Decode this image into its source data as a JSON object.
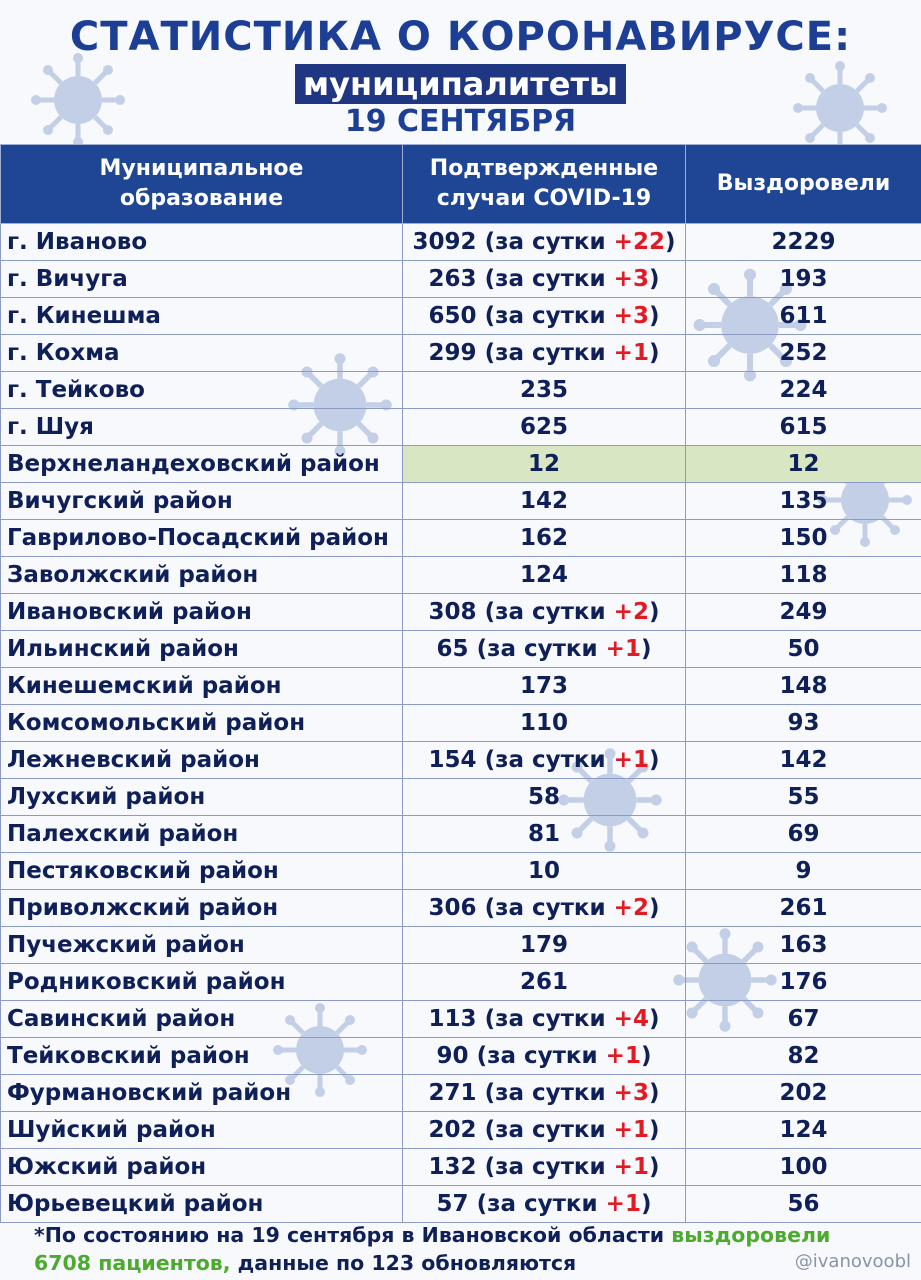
{
  "header": {
    "title": "СТАТИСТИКА О КОРОНАВИРУСЕ:",
    "subtitle": "муниципалитеты",
    "date": "19 СЕНТЯБРЯ"
  },
  "table": {
    "columns": [
      "Муниципальное образование",
      "Подтвержденные случаи COVID-19",
      "Выздоровели"
    ],
    "column_lines": [
      [
        "Муниципальное",
        "образование"
      ],
      [
        "Подтвержденные",
        "случаи COVID-19"
      ],
      [
        "Выздоровели"
      ]
    ],
    "delta_prefix": "(за сутки ",
    "delta_suffix": ")",
    "rows": [
      {
        "name": "г. Иваново",
        "confirmed": "3092",
        "delta": "+22",
        "recovered": "2229"
      },
      {
        "name": "г. Вичуга",
        "confirmed": "263",
        "delta": "+3",
        "recovered": "193"
      },
      {
        "name": "г. Кинешма",
        "confirmed": "650",
        "delta": "+3",
        "recovered": "611"
      },
      {
        "name": "г. Кохма",
        "confirmed": "299",
        "delta": "+1",
        "recovered": "252"
      },
      {
        "name": "г. Тейково",
        "confirmed": "235",
        "delta": "",
        "recovered": "224"
      },
      {
        "name": "г. Шуя",
        "confirmed": "625",
        "delta": "",
        "recovered": "615"
      },
      {
        "name": "Верхнеландеховский район",
        "confirmed": "12",
        "delta": "",
        "recovered": "12",
        "highlight": true
      },
      {
        "name": "Вичугский район",
        "confirmed": "142",
        "delta": "",
        "recovered": "135"
      },
      {
        "name": "Гаврилово-Посадский район",
        "confirmed": "162",
        "delta": "",
        "recovered": "150"
      },
      {
        "name": "Заволжский район",
        "confirmed": "124",
        "delta": "",
        "recovered": "118"
      },
      {
        "name": "Ивановский район",
        "confirmed": "308",
        "delta": "+2",
        "recovered": "249"
      },
      {
        "name": "Ильинский район",
        "confirmed": "65",
        "delta": "+1",
        "recovered": "50"
      },
      {
        "name": "Кинешемский район",
        "confirmed": "173",
        "delta": "",
        "recovered": "148"
      },
      {
        "name": "Комсомольский район",
        "confirmed": "110",
        "delta": "",
        "recovered": "93"
      },
      {
        "name": "Лежневский район",
        "confirmed": "154",
        "delta": "+1",
        "recovered": "142"
      },
      {
        "name": "Лухский район",
        "confirmed": "58",
        "delta": "",
        "recovered": "55"
      },
      {
        "name": "Палехский район",
        "confirmed": "81",
        "delta": "",
        "recovered": "69"
      },
      {
        "name": "Пестяковский район",
        "confirmed": "10",
        "delta": "",
        "recovered": "9"
      },
      {
        "name": "Приволжский район",
        "confirmed": "306",
        "delta": "+2",
        "recovered": "261"
      },
      {
        "name": "Пучежский район",
        "confirmed": "179",
        "delta": "",
        "recovered": "163"
      },
      {
        "name": "Родниковский район",
        "confirmed": "261",
        "delta": "",
        "recovered": "176"
      },
      {
        "name": "Савинский район",
        "confirmed": "113",
        "delta": "+4",
        "recovered": "67"
      },
      {
        "name": "Тейковский район",
        "confirmed": "90",
        "delta": "+1",
        "recovered": "82"
      },
      {
        "name": "Фурмановский район",
        "confirmed": "271",
        "delta": "+3",
        "recovered": "202"
      },
      {
        "name": "Шуйский район",
        "confirmed": "202",
        "delta": "+1",
        "recovered": "124"
      },
      {
        "name": "Южский район",
        "confirmed": "132",
        "delta": "+1",
        "recovered": "100"
      },
      {
        "name": "Юрьевецкий район",
        "confirmed": "57",
        "delta": "+1",
        "recovered": "56"
      }
    ]
  },
  "footer": {
    "note_part1": "*По состоянию на 19 сентября в Ивановской области ",
    "note_green": "выздоровели 6708 пациентов,",
    "note_part2": " данные по 123 обновляются",
    "handle": "@ivanovoobl"
  },
  "colors": {
    "title": "#1c3e94",
    "header_bg": "#1f4595",
    "delta": "#e01b24",
    "highlight": "#d8e6c4",
    "note_green": "#4caa2e"
  },
  "icons": [
    "virus-icon"
  ]
}
